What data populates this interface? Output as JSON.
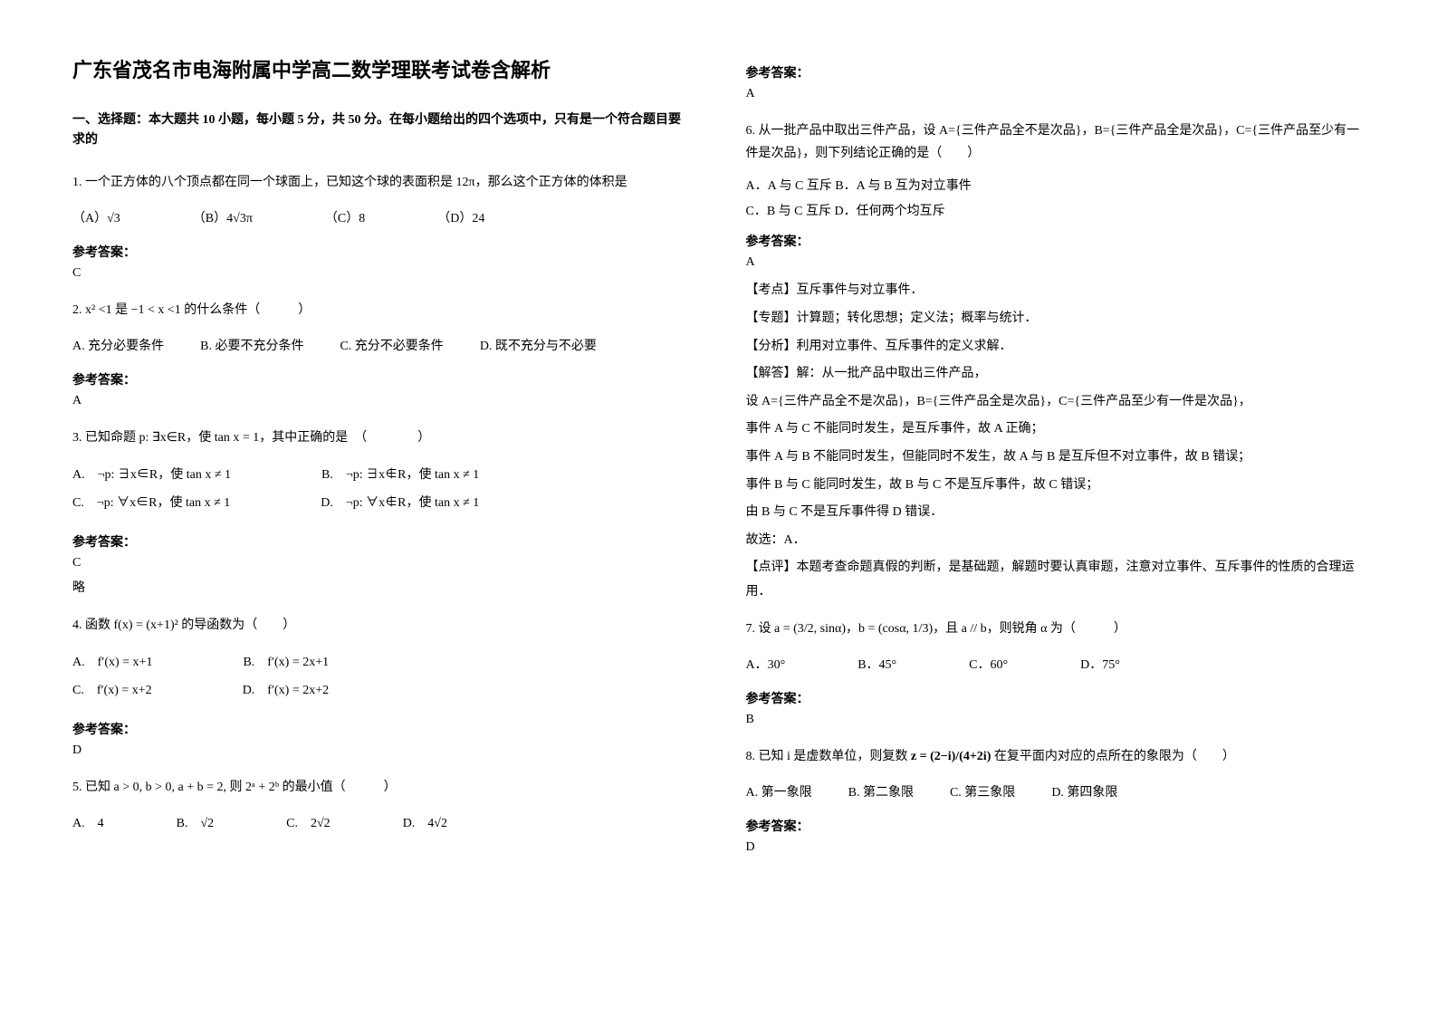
{
  "title": "广东省茂名市电海附属中学高二数学理联考试卷含解析",
  "section1_header": "一、选择题：本大题共 10 小题，每小题 5 分，共 50 分。在每小题给出的四个选项中，只有是一个符合题目要求的",
  "q1": {
    "text": "1. 一个正方体的八个顶点都在同一个球面上，已知这个球的表面积是 12π，那么这个正方体的体积是",
    "optA": "（A）√3",
    "optB": "（B）4√3π",
    "optC": "（C）8",
    "optD": "（D）24",
    "answer_label": "参考答案：",
    "answer": "C"
  },
  "q2": {
    "text": "2. x² <1 是 −1 < x <1 的什么条件（　　　）",
    "optA": "A. 充分必要条件",
    "optB": "B. 必要不充分条件",
    "optC": "C. 充分不必要条件",
    "optD": "D. 既不充分与不必要",
    "answer_label": "参考答案：",
    "answer": "A"
  },
  "q3": {
    "text": "3. 已知命题 p: ∃x∈R，使 tan x = 1，其中正确的是　（　　　　）",
    "optA": "A.　¬p: ∃x∈R，使 tan x ≠ 1",
    "optB": "B.　¬p: ∃x∉R，使 tan x ≠ 1",
    "optC": "C.　¬p: ∀x∈R，使 tan x ≠ 1",
    "optD": "D.　¬p: ∀x∉R，使 tan x ≠ 1",
    "answer_label": "参考答案：",
    "answer": "C",
    "note": "略"
  },
  "q4": {
    "text": "4. 函数 f(x) = (x+1)² 的导函数为（　　）",
    "optA": "A.　f′(x) = x+1",
    "optB": "B.　f′(x) = 2x+1",
    "optC": "C.　f′(x) = x+2",
    "optD": "D.　f′(x) = 2x+2",
    "answer_label": "参考答案：",
    "answer": "D"
  },
  "q5": {
    "text": "5. 已知 a > 0, b > 0, a + b = 2, 则 2ᵃ + 2ᵇ 的最小值（　　　）",
    "optA": "A.　4",
    "optB": "B.　√2",
    "optC": "C.　2√2",
    "optD": "D.　4√2"
  },
  "col2_answer_label1": "参考答案：",
  "col2_answer1": "A",
  "q6": {
    "text": "6. 从一批产品中取出三件产品，设 A={三件产品全不是次品}，B={三件产品全是次品}，C={三件产品至少有一件是次品}，则下列结论正确的是（　　）",
    "optA": "A．A 与 C 互斥",
    "optB": "B．A 与 B 互为对立事件",
    "optC": "C．B 与 C 互斥",
    "optD": "D．任何两个均互斥",
    "answer_label": "参考答案：",
    "answer": "A",
    "line1": "【考点】互斥事件与对立事件．",
    "line2": "【专题】计算题；转化思想；定义法；概率与统计．",
    "line3": "【分析】利用对立事件、互斥事件的定义求解．",
    "line4": "【解答】解：从一批产品中取出三件产品，",
    "line5": "设 A={三件产品全不是次品}，B={三件产品全是次品}，C={三件产品至少有一件是次品}，",
    "line6": "事件 A 与 C 不能同时发生，是互斥事件，故 A 正确；",
    "line7": "事件 A 与 B 不能同时发生，但能同时不发生，故 A 与 B 是互斥但不对立事件，故 B 错误；",
    "line8": "事件 B 与 C 能同时发生，故 B 与 C 不是互斥事件，故 C 错误；",
    "line9": "由 B 与 C 不是互斥事件得 D 错误．",
    "line10": "故选：A．",
    "line11": "【点评】本题考查命题真假的判断，是基础题，解题时要认真审题，注意对立事件、互斥事件的性质的合理运用．"
  },
  "q7": {
    "text": "7. 设 a = (3/2, sinα)，b = (cosα, 1/3)，且 a // b，则锐角 α 为（　　　）",
    "optA": "A．30°",
    "optB": "B．45°",
    "optC": "C．60°",
    "optD": "D．75°",
    "answer_label": "参考答案：",
    "answer": "B"
  },
  "q8": {
    "text_prefix": "8. 已知 i 是虚数单位，则复数",
    "formula": "z = (2−i)/(4+2i)",
    "text_suffix": "在复平面内对应的点所在的象限为（　　）",
    "optA": "A. 第一象限",
    "optB": "B. 第二象限",
    "optC": "C. 第三象限",
    "optD": "D. 第四象限",
    "answer_label": "参考答案：",
    "answer": "D"
  }
}
